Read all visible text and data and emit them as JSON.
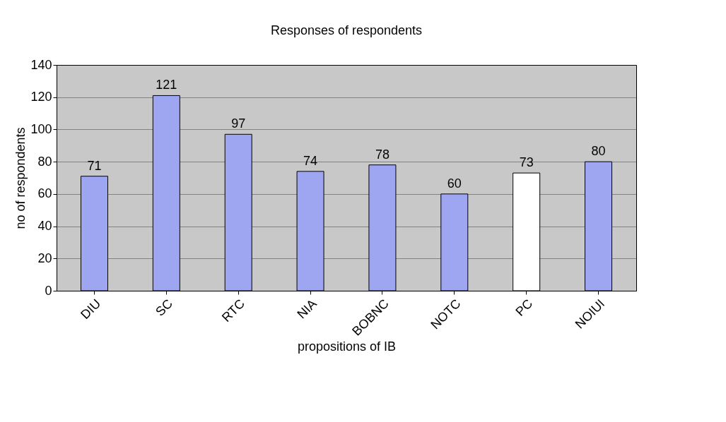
{
  "chart_data": {
    "type": "bar",
    "title": "Responses of respondents",
    "xlabel": "propositions of IB",
    "ylabel": "no of respondents",
    "categories": [
      "DIU",
      "SC",
      "RTC",
      "NIA",
      "BOBNC",
      "NOTC",
      "PC",
      "NOIUI"
    ],
    "values": [
      71,
      121,
      97,
      74,
      78,
      60,
      73,
      80
    ],
    "colors": [
      "#9ea6f2",
      "#9ea6f2",
      "#9ea6f2",
      "#9ea6f2",
      "#9ea6f2",
      "#9ea6f2",
      "#ffffff",
      "#9ea6f2"
    ],
    "ylim": [
      0,
      140
    ],
    "yticks": [
      0,
      20,
      40,
      60,
      80,
      100,
      120,
      140
    ],
    "grid": "y",
    "data_labels": true
  }
}
